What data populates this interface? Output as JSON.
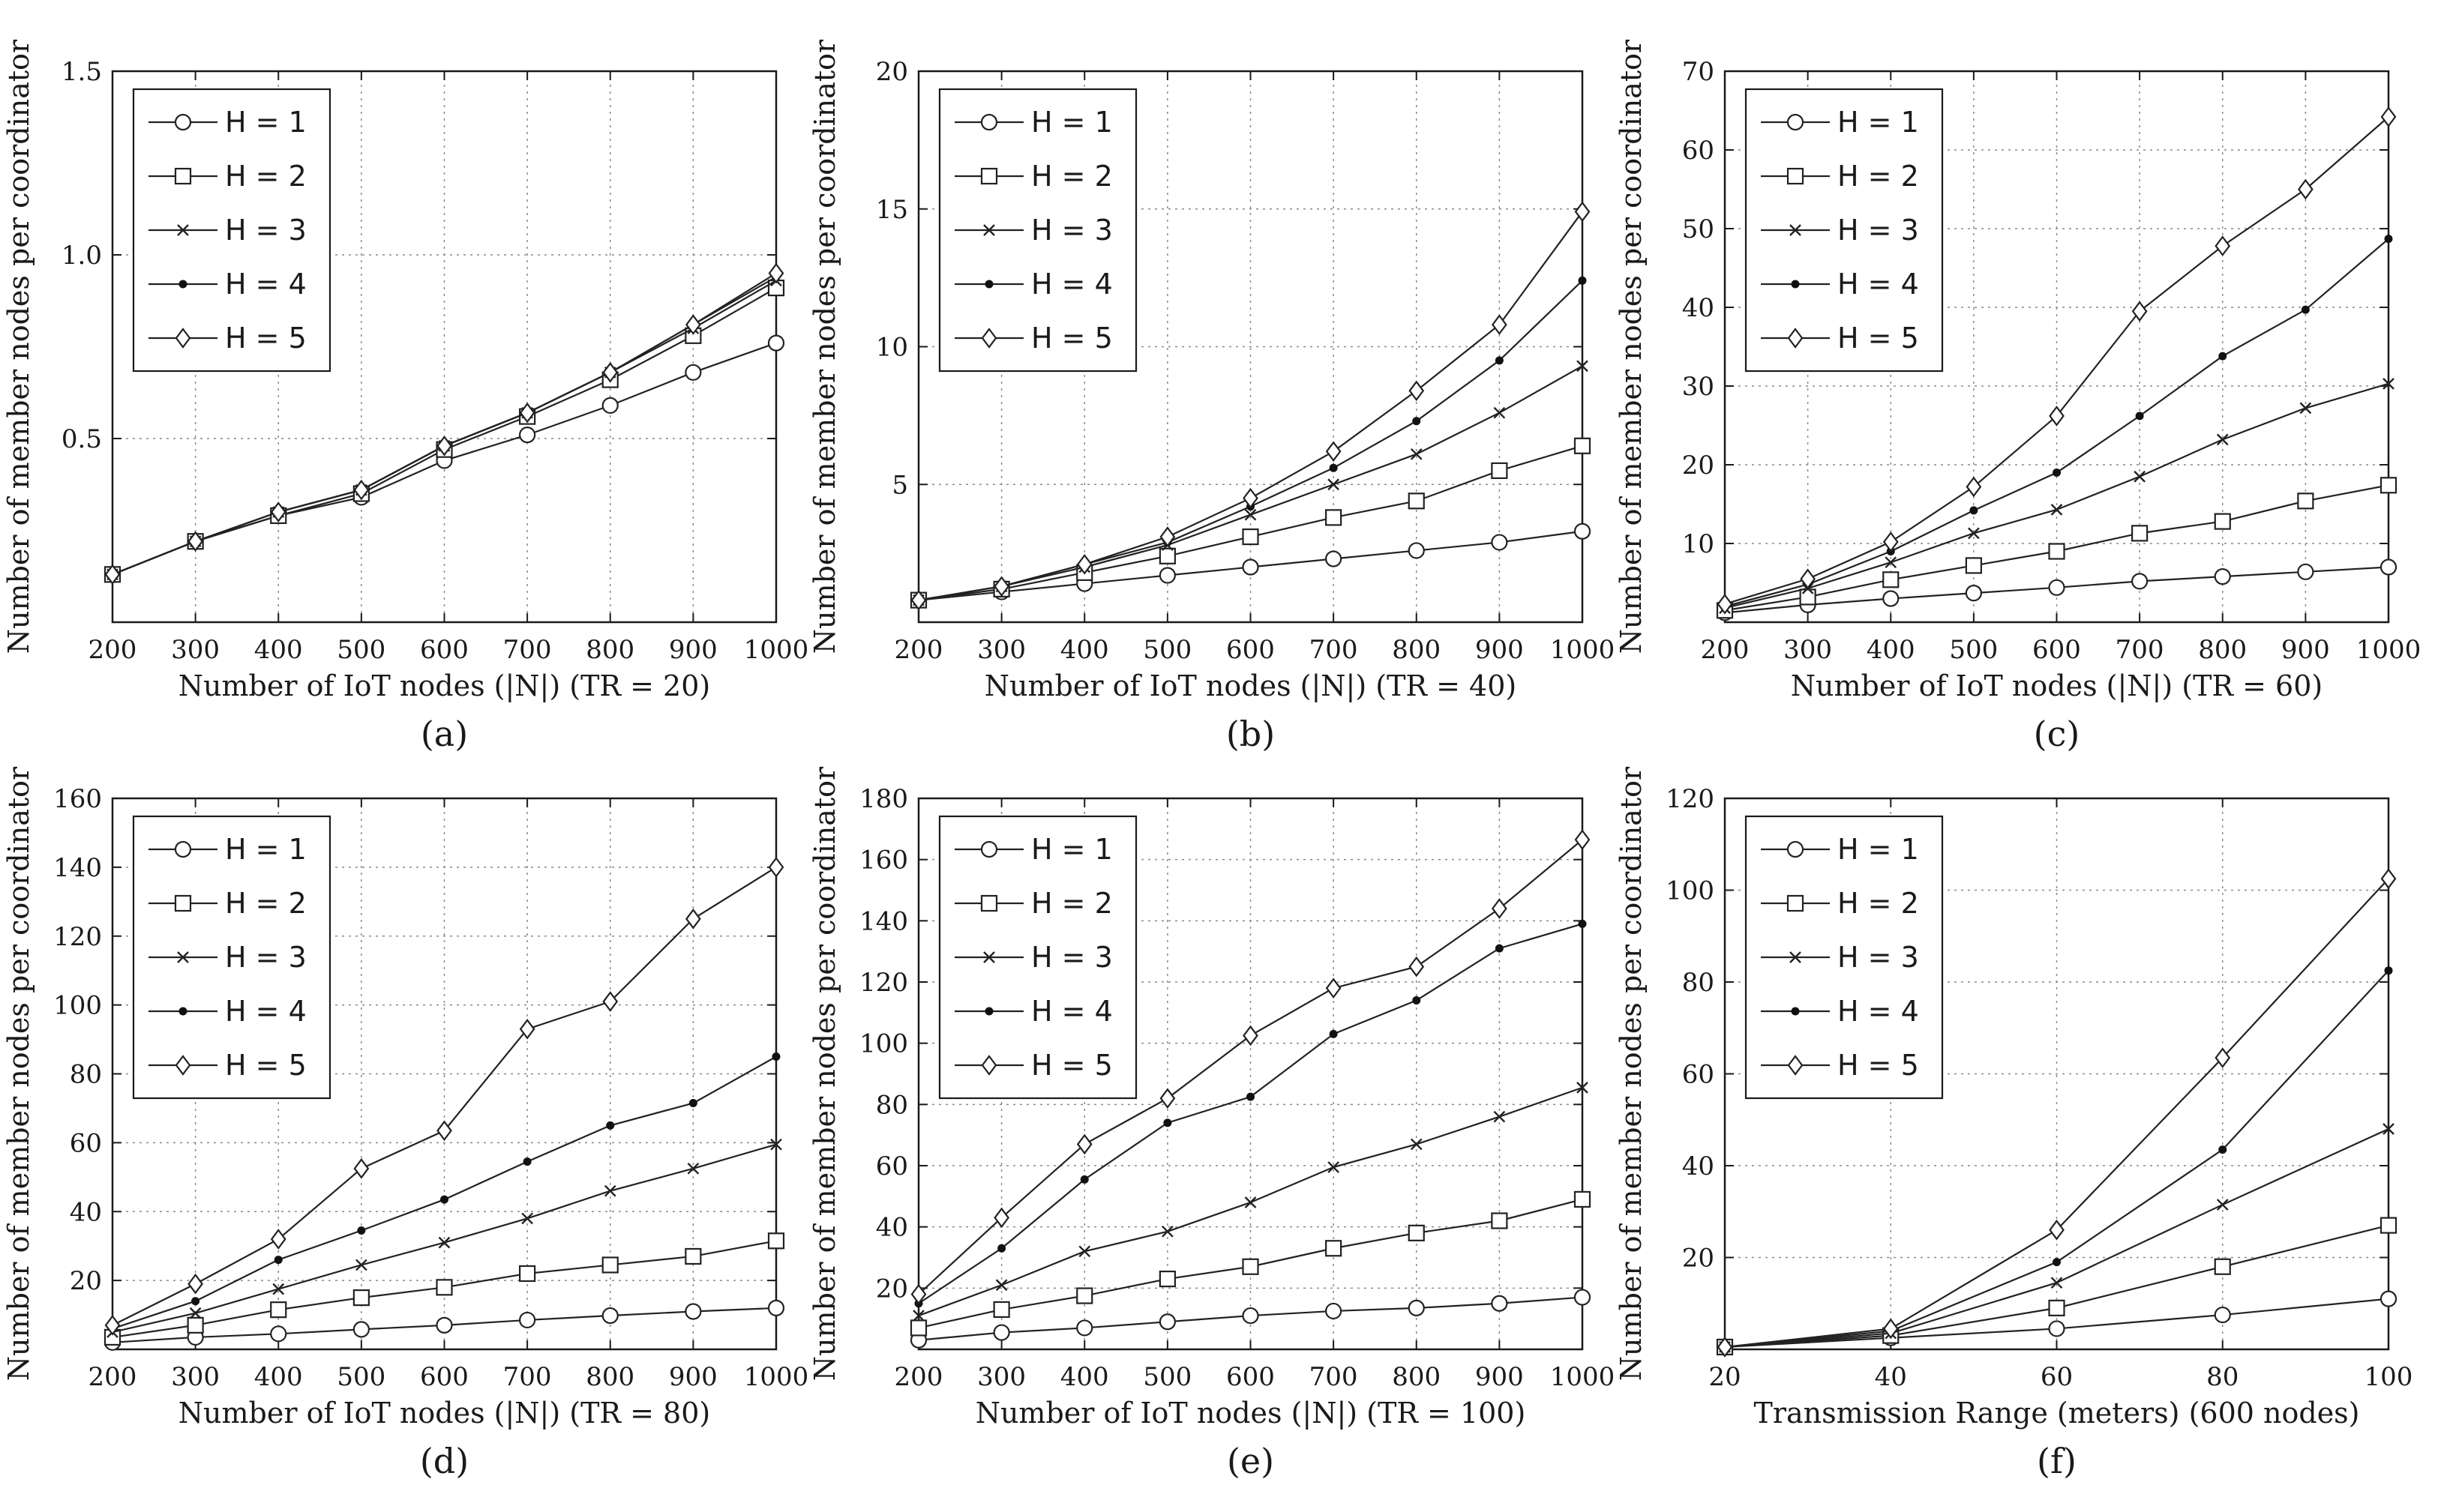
{
  "chart_data": [
    {
      "type": "line",
      "panel_label": "(a)",
      "xlabel": "Number of IoT nodes (|N|) (TR = 20)",
      "ylabel": "Number of member nodes per coordinator",
      "x": [
        200,
        300,
        400,
        500,
        600,
        700,
        800,
        900,
        1000
      ],
      "xlim": [
        200,
        1000
      ],
      "ylim": [
        0,
        1.5
      ],
      "xticks": [
        200,
        300,
        400,
        500,
        600,
        700,
        800,
        900,
        1000
      ],
      "xtick_labels": [
        "200",
        "300",
        "400",
        "500",
        "600",
        "700",
        "800",
        "900",
        "1000"
      ],
      "yticks": [
        0.5,
        1.0,
        1.5
      ],
      "ytick_labels": [
        "0.5",
        "1.0",
        "1.5"
      ],
      "grid": true,
      "legend_position": "top-left",
      "series": [
        {
          "name": "H = 1",
          "marker": "circle",
          "values": [
            0.13,
            0.22,
            0.29,
            0.34,
            0.44,
            0.51,
            0.59,
            0.68,
            0.76
          ]
        },
        {
          "name": "H = 2",
          "marker": "square",
          "values": [
            0.13,
            0.22,
            0.29,
            0.35,
            0.47,
            0.56,
            0.66,
            0.78,
            0.91
          ]
        },
        {
          "name": "H = 3",
          "marker": "x",
          "values": [
            0.13,
            0.22,
            0.3,
            0.36,
            0.48,
            0.57,
            0.68,
            0.8,
            0.93
          ]
        },
        {
          "name": "H = 4",
          "marker": "dot",
          "values": [
            0.13,
            0.22,
            0.3,
            0.36,
            0.48,
            0.57,
            0.68,
            0.81,
            0.94
          ]
        },
        {
          "name": "H = 5",
          "marker": "diamond",
          "values": [
            0.13,
            0.22,
            0.3,
            0.36,
            0.48,
            0.57,
            0.68,
            0.81,
            0.95
          ]
        }
      ]
    },
    {
      "type": "line",
      "panel_label": "(b)",
      "xlabel": "Number of IoT nodes (|N|) (TR = 40)",
      "ylabel": "Number of member nodes per coordinator",
      "x": [
        200,
        300,
        400,
        500,
        600,
        700,
        800,
        900,
        1000
      ],
      "xlim": [
        200,
        1000
      ],
      "ylim": [
        0,
        20
      ],
      "xticks": [
        200,
        300,
        400,
        500,
        600,
        700,
        800,
        900,
        1000
      ],
      "xtick_labels": [
        "200",
        "300",
        "400",
        "500",
        "600",
        "700",
        "800",
        "900",
        "1000"
      ],
      "yticks": [
        5,
        10,
        15,
        20
      ],
      "ytick_labels": [
        "5",
        "10",
        "15",
        "20"
      ],
      "grid": true,
      "legend_position": "top-left",
      "series": [
        {
          "name": "H = 1",
          "marker": "circle",
          "values": [
            0.8,
            1.1,
            1.4,
            1.7,
            2.0,
            2.3,
            2.6,
            2.9,
            3.3
          ]
        },
        {
          "name": "H = 2",
          "marker": "square",
          "values": [
            0.8,
            1.2,
            1.8,
            2.4,
            3.1,
            3.8,
            4.4,
            5.5,
            6.4
          ]
        },
        {
          "name": "H = 3",
          "marker": "x",
          "values": [
            0.8,
            1.3,
            2.0,
            2.8,
            3.9,
            5.0,
            6.1,
            7.6,
            9.3
          ]
        },
        {
          "name": "H = 4",
          "marker": "dot",
          "values": [
            0.8,
            1.3,
            2.1,
            2.9,
            4.2,
            5.6,
            7.3,
            9.5,
            12.4
          ]
        },
        {
          "name": "H = 5",
          "marker": "diamond",
          "values": [
            0.8,
            1.3,
            2.1,
            3.1,
            4.5,
            6.2,
            8.4,
            10.8,
            14.9
          ]
        }
      ]
    },
    {
      "type": "line",
      "panel_label": "(c)",
      "xlabel": "Number of IoT nodes (|N|) (TR = 60)",
      "ylabel": "Number of member nodes per coordinator",
      "x": [
        200,
        300,
        400,
        500,
        600,
        700,
        800,
        900,
        1000
      ],
      "xlim": [
        200,
        1000
      ],
      "ylim": [
        0,
        70
      ],
      "xticks": [
        200,
        300,
        400,
        500,
        600,
        700,
        800,
        900,
        1000
      ],
      "xtick_labels": [
        "200",
        "300",
        "400",
        "500",
        "600",
        "700",
        "800",
        "900",
        "1000"
      ],
      "yticks": [
        10,
        20,
        30,
        40,
        50,
        60,
        70
      ],
      "ytick_labels": [
        "10",
        "20",
        "30",
        "40",
        "50",
        "60",
        "70"
      ],
      "grid": true,
      "legend_position": "top-left",
      "series": [
        {
          "name": "H = 1",
          "marker": "circle",
          "values": [
            1.2,
            2.2,
            3.0,
            3.7,
            4.4,
            5.2,
            5.8,
            6.4,
            7.0
          ]
        },
        {
          "name": "H = 2",
          "marker": "square",
          "values": [
            1.5,
            3.2,
            5.4,
            7.2,
            9.0,
            11.3,
            12.8,
            15.4,
            17.4
          ]
        },
        {
          "name": "H = 3",
          "marker": "x",
          "values": [
            1.8,
            4.3,
            7.6,
            11.3,
            14.3,
            18.5,
            23.2,
            27.2,
            30.3
          ]
        },
        {
          "name": "H = 4",
          "marker": "dot",
          "values": [
            2.0,
            4.8,
            9.0,
            14.2,
            19.0,
            26.2,
            33.8,
            39.7,
            48.7
          ]
        },
        {
          "name": "H = 5",
          "marker": "diamond",
          "values": [
            2.3,
            5.5,
            10.2,
            17.2,
            26.2,
            39.5,
            47.8,
            55.0,
            64.2
          ]
        }
      ]
    },
    {
      "type": "line",
      "panel_label": "(d)",
      "xlabel": "Number of IoT nodes (|N|) (TR = 80)",
      "ylabel": "Number of member nodes per coordinator",
      "x": [
        200,
        300,
        400,
        500,
        600,
        700,
        800,
        900,
        1000
      ],
      "xlim": [
        200,
        1000
      ],
      "ylim": [
        0,
        160
      ],
      "xticks": [
        200,
        300,
        400,
        500,
        600,
        700,
        800,
        900,
        1000
      ],
      "xtick_labels": [
        "200",
        "300",
        "400",
        "500",
        "600",
        "700",
        "800",
        "900",
        "1000"
      ],
      "yticks": [
        20,
        40,
        60,
        80,
        100,
        120,
        140,
        160
      ],
      "ytick_labels": [
        "20",
        "40",
        "60",
        "80",
        "100",
        "120",
        "140",
        "160"
      ],
      "grid": true,
      "legend_position": "top-left",
      "series": [
        {
          "name": "H = 1",
          "marker": "circle",
          "values": [
            2,
            3.5,
            4.5,
            5.8,
            7,
            8.5,
            9.8,
            11,
            12
          ]
        },
        {
          "name": "H = 2",
          "marker": "square",
          "values": [
            3.5,
            7,
            11.5,
            15,
            18,
            22,
            24.5,
            27,
            31.5
          ]
        },
        {
          "name": "H = 3",
          "marker": "x",
          "values": [
            5,
            10.5,
            17.5,
            24.5,
            31,
            38,
            46,
            52.5,
            59.5
          ]
        },
        {
          "name": "H = 4",
          "marker": "dot",
          "values": [
            6,
            14,
            26,
            34.5,
            43.5,
            54.5,
            65,
            71.5,
            85
          ]
        },
        {
          "name": "H = 5",
          "marker": "diamond",
          "values": [
            7,
            19,
            32,
            52.5,
            63.5,
            93,
            101,
            125,
            140
          ]
        }
      ]
    },
    {
      "type": "line",
      "panel_label": "(e)",
      "xlabel": "Number of IoT nodes (|N|) (TR = 100)",
      "ylabel": "Number of member nodes per coordinator",
      "x": [
        200,
        300,
        400,
        500,
        600,
        700,
        800,
        900,
        1000
      ],
      "xlim": [
        200,
        1000
      ],
      "ylim": [
        0,
        180
      ],
      "xticks": [
        200,
        300,
        400,
        500,
        600,
        700,
        800,
        900,
        1000
      ],
      "xtick_labels": [
        "200",
        "300",
        "400",
        "500",
        "600",
        "700",
        "800",
        "900",
        "1000"
      ],
      "yticks": [
        20,
        40,
        60,
        80,
        100,
        120,
        140,
        160,
        180
      ],
      "ytick_labels": [
        "20",
        "40",
        "60",
        "80",
        "100",
        "120",
        "140",
        "160",
        "180"
      ],
      "grid": true,
      "legend_position": "top-left",
      "series": [
        {
          "name": "H = 1",
          "marker": "circle",
          "values": [
            3,
            5.5,
            7,
            9,
            11,
            12.5,
            13.5,
            15,
            17
          ]
        },
        {
          "name": "H = 2",
          "marker": "square",
          "values": [
            7,
            13,
            17.5,
            23,
            27,
            33,
            38,
            42,
            49
          ]
        },
        {
          "name": "H = 3",
          "marker": "x",
          "values": [
            11,
            21,
            32,
            38.5,
            48,
            59.5,
            67,
            76,
            85.5
          ]
        },
        {
          "name": "H = 4",
          "marker": "dot",
          "values": [
            15,
            33,
            55.5,
            74,
            82.5,
            103,
            114,
            131,
            139
          ]
        },
        {
          "name": "H = 5",
          "marker": "diamond",
          "values": [
            18,
            43,
            67,
            82,
            102.5,
            118,
            125,
            144,
            166.5
          ]
        }
      ]
    },
    {
      "type": "line",
      "panel_label": "(f)",
      "xlabel": "Transmission Range (meters) (600 nodes)",
      "ylabel": "Number of member nodes per coordinator",
      "x": [
        20,
        40,
        60,
        80,
        100
      ],
      "xlim": [
        20,
        100
      ],
      "ylim": [
        0,
        120
      ],
      "xticks": [
        20,
        40,
        60,
        80,
        100
      ],
      "xtick_labels": [
        "20",
        "40",
        "60",
        "80",
        "100"
      ],
      "yticks": [
        20,
        40,
        60,
        80,
        100,
        120
      ],
      "ytick_labels": [
        "20",
        "40",
        "60",
        "80",
        "100",
        "120"
      ],
      "grid": true,
      "legend_position": "top-left",
      "series": [
        {
          "name": "H = 1",
          "marker": "circle",
          "values": [
            0.5,
            2.5,
            4.5,
            7.5,
            11
          ]
        },
        {
          "name": "H = 2",
          "marker": "square",
          "values": [
            0.5,
            3,
            9,
            18,
            27
          ]
        },
        {
          "name": "H = 3",
          "marker": "x",
          "values": [
            0.5,
            3.5,
            14.5,
            31.5,
            48
          ]
        },
        {
          "name": "H = 4",
          "marker": "dot",
          "values": [
            0.5,
            4,
            19,
            43.5,
            82.5
          ]
        },
        {
          "name": "H = 5",
          "marker": "diamond",
          "values": [
            0.5,
            4.5,
            26,
            63.5,
            102.5
          ]
        }
      ]
    }
  ]
}
